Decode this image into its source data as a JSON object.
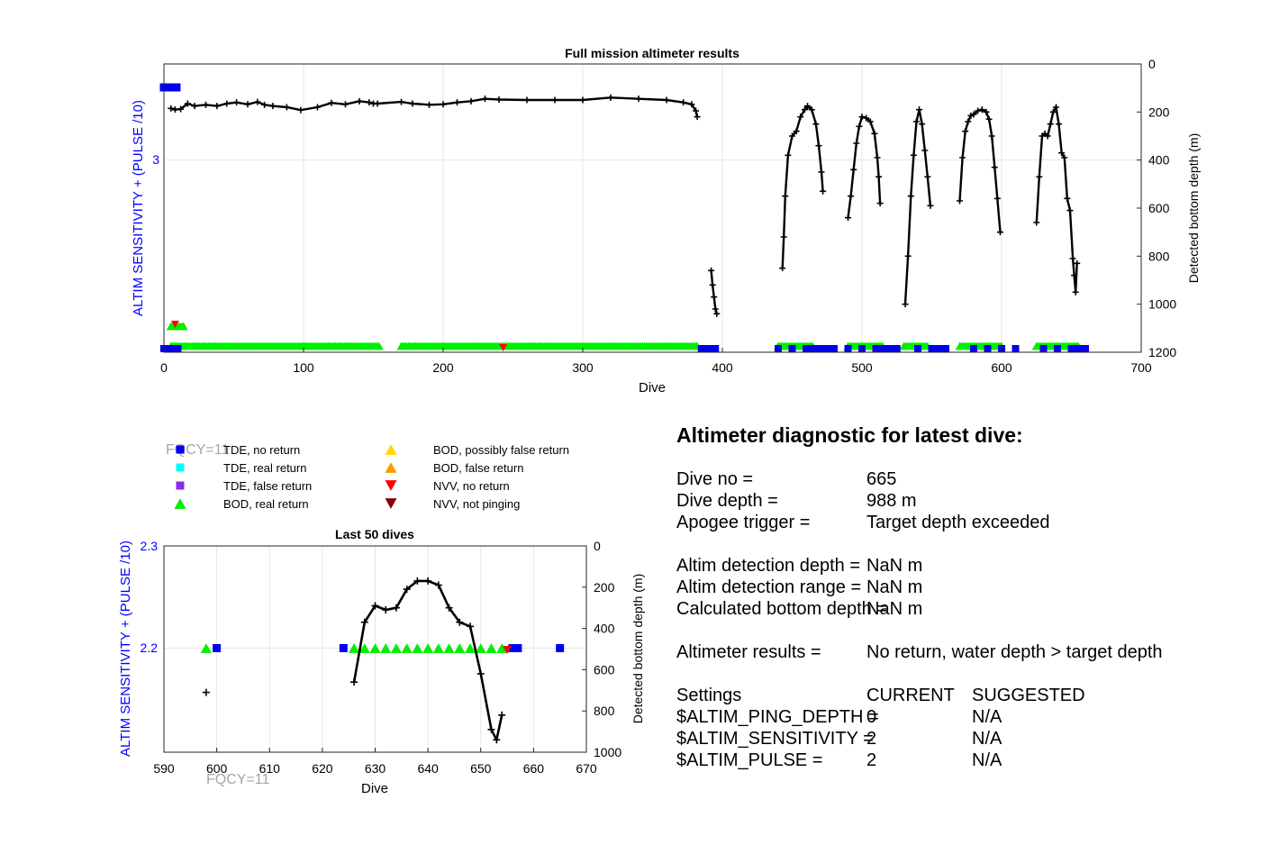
{
  "top_chart": {
    "title": "Full mission altimeter results",
    "xlabel": "Dive",
    "ylabel_left": "ALTIM SENSITIVITY + (PULSE /10)",
    "ylabel_right": "Detected bottom depth (m)",
    "x_ticks": [
      "0",
      "100",
      "200",
      "300",
      "400",
      "500",
      "600",
      "700"
    ],
    "left_ticks": [
      "3"
    ],
    "right_ticks": [
      "0",
      "200",
      "400",
      "600",
      "800",
      "1000",
      "1200"
    ]
  },
  "legend": {
    "fqcy": "FQCY=11",
    "items": [
      {
        "label": "TDE, no return",
        "color": "#0000ee",
        "marker": "square"
      },
      {
        "label": "TDE, real return",
        "color": "#00ffff",
        "marker": "square"
      },
      {
        "label": "TDE, false return",
        "color": "#8a2be2",
        "marker": "square"
      },
      {
        "label": "BOD, real return",
        "color": "#00ee00",
        "marker": "triangle-up"
      },
      {
        "label": "BOD, possibly false return",
        "color": "#ffd700",
        "marker": "triangle-up"
      },
      {
        "label": "BOD, false return",
        "color": "#ff9900",
        "marker": "triangle-up"
      },
      {
        "label": "NVV, no return",
        "color": "#ff0000",
        "marker": "triangle-down"
      },
      {
        "label": "NVV, not pinging",
        "color": "#8b0000",
        "marker": "triangle-down"
      }
    ]
  },
  "bottom_chart": {
    "title": "Last 50 dives",
    "xlabel": "Dive",
    "ylabel_left": "ALTIM SENSITIVITY + (PULSE /10)",
    "ylabel_right": "Detected bottom depth (m)",
    "x_ticks": [
      "590",
      "600",
      "610",
      "620",
      "630",
      "640",
      "650",
      "660",
      "670"
    ],
    "left_ticks": [
      "2.3",
      "2.2"
    ],
    "right_ticks": [
      "0",
      "200",
      "400",
      "600",
      "800",
      "1000"
    ],
    "fqcy": "FQCY=11"
  },
  "diagnostic": {
    "title": "Altimeter diagnostic for latest dive:",
    "dive_no_label": "Dive no =",
    "dive_no_value": "665",
    "dive_depth_label": "Dive depth =",
    "dive_depth_value": "988 m",
    "apogee_label": "Apogee trigger =",
    "apogee_value": "Target depth exceeded",
    "det_depth_label": "Altim detection depth =",
    "det_depth_value": "NaN m",
    "det_range_label": "Altim detection range =",
    "det_range_value": "NaN m",
    "calc_bottom_label": "Calculated bottom depth =",
    "calc_bottom_value": "NaN m",
    "results_label": "Altimeter results =",
    "results_value": "No return, water depth > target depth",
    "settings_label": "Settings",
    "current_label": "CURRENT",
    "suggested_label": "SUGGESTED",
    "ping_depth_label": "$ALTIM_PING_DEPTH =",
    "ping_depth_current": "0",
    "ping_depth_suggested": "N/A",
    "sensitivity_label": "$ALTIM_SENSITIVITY =",
    "sensitivity_current": "2",
    "sensitivity_suggested": "N/A",
    "pulse_label": "$ALTIM_PULSE =",
    "pulse_current": "2",
    "pulse_suggested": "N/A"
  },
  "chart_data": [
    {
      "type": "line",
      "title": "Full mission altimeter results",
      "xlabel": "Dive",
      "ylabel": "Detected bottom depth (m)",
      "xlim": [
        0,
        700
      ],
      "ylim_right": [
        0,
        1200
      ],
      "ylim_right_reversed": true,
      "ylim_left_tick": 3,
      "grid": true,
      "series": [
        {
          "name": "Detected bottom depth",
          "color": "#000000",
          "segments": [
            [
              [
                5,
                185
              ],
              [
                8,
                190
              ],
              [
                12,
                188
              ],
              [
                17,
                165
              ],
              [
                22,
                175
              ],
              [
                30,
                170
              ],
              [
                38,
                175
              ],
              [
                45,
                165
              ],
              [
                52,
                160
              ],
              [
                60,
                168
              ],
              [
                67,
                158
              ],
              [
                72,
                170
              ],
              [
                78,
                175
              ],
              [
                88,
                180
              ],
              [
                98,
                192
              ],
              [
                110,
                180
              ],
              [
                120,
                162
              ],
              [
                130,
                168
              ],
              [
                140,
                155
              ],
              [
                147,
                160
              ],
              [
                150,
                165
              ],
              [
                153,
                165
              ],
              [
                170,
                158
              ],
              [
                178,
                165
              ],
              [
                190,
                170
              ],
              [
                200,
                168
              ],
              [
                210,
                160
              ],
              [
                220,
                155
              ],
              [
                230,
                145
              ],
              [
                240,
                148
              ],
              [
                260,
                150
              ],
              [
                280,
                150
              ],
              [
                300,
                150
              ],
              [
                320,
                140
              ],
              [
                340,
                145
              ],
              [
                360,
                150
              ],
              [
                372,
                160
              ],
              [
                378,
                168
              ],
              [
                381,
                195
              ],
              [
                382,
                220
              ]
            ],
            [
              [
                392,
                860
              ],
              [
                393,
                920
              ],
              [
                394,
                970
              ],
              [
                395,
                1020
              ],
              [
                396,
                1040
              ]
            ],
            [
              [
                443,
                850
              ],
              [
                444,
                720
              ],
              [
                445,
                550
              ],
              [
                447,
                380
              ],
              [
                450,
                300
              ],
              [
                453,
                280
              ],
              [
                456,
                220
              ],
              [
                459,
                190
              ],
              [
                461,
                175
              ],
              [
                464,
                190
              ],
              [
                467,
                250
              ],
              [
                469,
                340
              ],
              [
                471,
                450
              ],
              [
                472,
                530
              ]
            ],
            [
              [
                490,
                640
              ],
              [
                492,
                550
              ],
              [
                494,
                440
              ],
              [
                496,
                330
              ],
              [
                498,
                260
              ],
              [
                500,
                220
              ],
              [
                503,
                225
              ],
              [
                506,
                240
              ],
              [
                509,
                290
              ],
              [
                511,
                390
              ],
              [
                512,
                470
              ],
              [
                513,
                580
              ]
            ],
            [
              [
                531,
                1000
              ],
              [
                533,
                800
              ],
              [
                535,
                550
              ],
              [
                537,
                380
              ],
              [
                539,
                240
              ],
              [
                541,
                190
              ],
              [
                543,
                250
              ],
              [
                545,
                360
              ],
              [
                547,
                470
              ],
              [
                549,
                590
              ]
            ],
            [
              [
                570,
                570
              ],
              [
                572,
                390
              ],
              [
                574,
                280
              ],
              [
                576,
                240
              ],
              [
                578,
                215
              ],
              [
                580,
                210
              ],
              [
                583,
                195
              ],
              [
                586,
                190
              ],
              [
                589,
                200
              ],
              [
                591,
                230
              ],
              [
                593,
                300
              ],
              [
                595,
                430
              ],
              [
                597,
                560
              ],
              [
                599,
                700
              ]
            ],
            [
              [
                625,
                660
              ],
              [
                627,
                470
              ],
              [
                629,
                300
              ],
              [
                631,
                290
              ],
              [
                633,
                300
              ],
              [
                635,
                250
              ],
              [
                637,
                200
              ],
              [
                639,
                180
              ],
              [
                641,
                250
              ],
              [
                643,
                370
              ],
              [
                645,
                390
              ],
              [
                647,
                560
              ],
              [
                649,
                610
              ],
              [
                651,
                810
              ],
              [
                652,
                880
              ],
              [
                653,
                950
              ],
              [
                654,
                830
              ]
            ]
          ]
        },
        {
          "name": "TDE, no return",
          "color": "#0000ee",
          "x": [
            0,
            1,
            2,
            3,
            4,
            5,
            6,
            7,
            8,
            9,
            10,
            385,
            386,
            390,
            395,
            440,
            450,
            460,
            465,
            470,
            475,
            480,
            490,
            500,
            510,
            515,
            520,
            525,
            540,
            550,
            555,
            560,
            580,
            590,
            600,
            610,
            630,
            640,
            650,
            655,
            660
          ],
          "y_left": "baseline"
        },
        {
          "name": "BOD, real return",
          "color": "#00ee00",
          "x_ranges": [
            [
              5,
              15
            ],
            [
              15,
              155
            ],
            [
              170,
              382
            ],
            [
              440,
              465
            ],
            [
              490,
              515
            ],
            [
              530,
              548
            ],
            [
              570,
              600
            ],
            [
              625,
              655
            ]
          ]
        },
        {
          "name": "NVV, no return",
          "color": "#ff0000",
          "x": [
            8,
            243
          ]
        }
      ]
    },
    {
      "type": "line",
      "title": "Last 50 dives",
      "xlabel": "Dive",
      "ylabel": "Detected bottom depth (m)",
      "xlim": [
        590,
        670
      ],
      "ylim_left": [
        2.1,
        2.3
      ],
      "ylim_right": [
        0,
        1000
      ],
      "ylim_right_reversed": true,
      "grid": true,
      "series": [
        {
          "name": "Detected bottom depth",
          "color": "#000000",
          "x": [
            626,
            628,
            630,
            632,
            634,
            636,
            638,
            640,
            642,
            644,
            646,
            648,
            650,
            652,
            653,
            654
          ],
          "y": [
            660,
            370,
            290,
            310,
            300,
            210,
            170,
            170,
            190,
            300,
            370,
            390,
            620,
            890,
            940,
            820
          ]
        },
        {
          "name": "Detected bottom depth (isolated)",
          "color": "#000000",
          "x": [
            598
          ],
          "y": [
            710
          ]
        },
        {
          "name": "TDE, no return",
          "color": "#0000ee",
          "x": [
            600,
            624,
            657,
            665
          ],
          "y_left": [
            2.2,
            2.2,
            2.2,
            2.2
          ]
        },
        {
          "name": "BOD, real return",
          "color": "#00ee00",
          "x": [
            598,
            626,
            628,
            630,
            632,
            634,
            636,
            638,
            640,
            642,
            644,
            646,
            648,
            650,
            652,
            654
          ],
          "y_left": [
            2.2,
            2.2,
            2.2,
            2.2,
            2.2,
            2.2,
            2.2,
            2.2,
            2.2,
            2.2,
            2.2,
            2.2,
            2.2,
            2.2,
            2.2,
            2.2
          ]
        },
        {
          "name": "NVV, no return",
          "color": "#ff0000",
          "x": [
            655
          ],
          "y_left": [
            2.2
          ]
        }
      ]
    }
  ]
}
